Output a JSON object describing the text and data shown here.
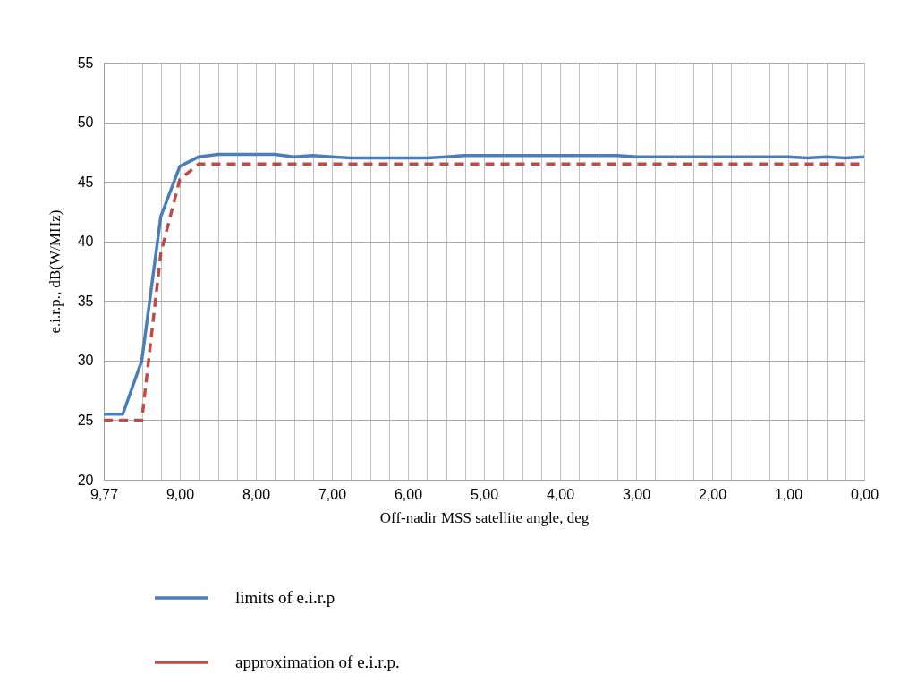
{
  "chart_data": {
    "type": "line",
    "xlabel": "Off-nadir MSS satellite angle, deg",
    "ylabel": "e.i.r.p., dB(W/MHz)",
    "categories": [
      "9,77",
      null,
      null,
      null,
      "9,00",
      null,
      null,
      null,
      "8,00",
      null,
      null,
      null,
      "7,00",
      null,
      null,
      null,
      "6,00",
      null,
      null,
      null,
      "5,00",
      null,
      null,
      null,
      "4,00",
      null,
      null,
      null,
      "3,00",
      null,
      null,
      null,
      "2,00",
      null,
      null,
      null,
      "1,00",
      null,
      null,
      null,
      "0,00"
    ],
    "series": [
      {
        "name": "limits of e.i.r.p",
        "color": "#4a7ebb",
        "line_style": "solid",
        "values": [
          25.5,
          25.5,
          30,
          42.1,
          46.3,
          47.1,
          47.3,
          47.3,
          47.3,
          47.3,
          47.1,
          47.2,
          47.1,
          47.0,
          47.0,
          47.0,
          47.0,
          47.0,
          47.1,
          47.2,
          47.2,
          47.2,
          47.2,
          47.2,
          47.2,
          47.2,
          47.2,
          47.2,
          47.1,
          47.1,
          47.1,
          47.1,
          47.1,
          47.1,
          47.1,
          47.1,
          47.1,
          47.0,
          47.1,
          47.0,
          47.1
        ]
      },
      {
        "name": "approximation of e.i.r.p.",
        "color": "#be4b48",
        "line_style": "dashed",
        "values": [
          25,
          25,
          25,
          39,
          45.2,
          46.5,
          46.5,
          46.5,
          46.5,
          46.5,
          46.5,
          46.5,
          46.5,
          46.5,
          46.5,
          46.5,
          46.5,
          46.5,
          46.5,
          46.5,
          46.5,
          46.5,
          46.5,
          46.5,
          46.5,
          46.5,
          46.5,
          46.5,
          46.5,
          46.5,
          46.5,
          46.5,
          46.5,
          46.5,
          46.5,
          46.5,
          46.5,
          46.5,
          46.5,
          46.5,
          46.5
        ]
      }
    ],
    "ylim": [
      20,
      55
    ],
    "yticks": [
      20,
      25,
      30,
      35,
      40,
      45,
      50,
      55
    ],
    "grid": true,
    "legend": "bottom left",
    "marker": "none"
  }
}
